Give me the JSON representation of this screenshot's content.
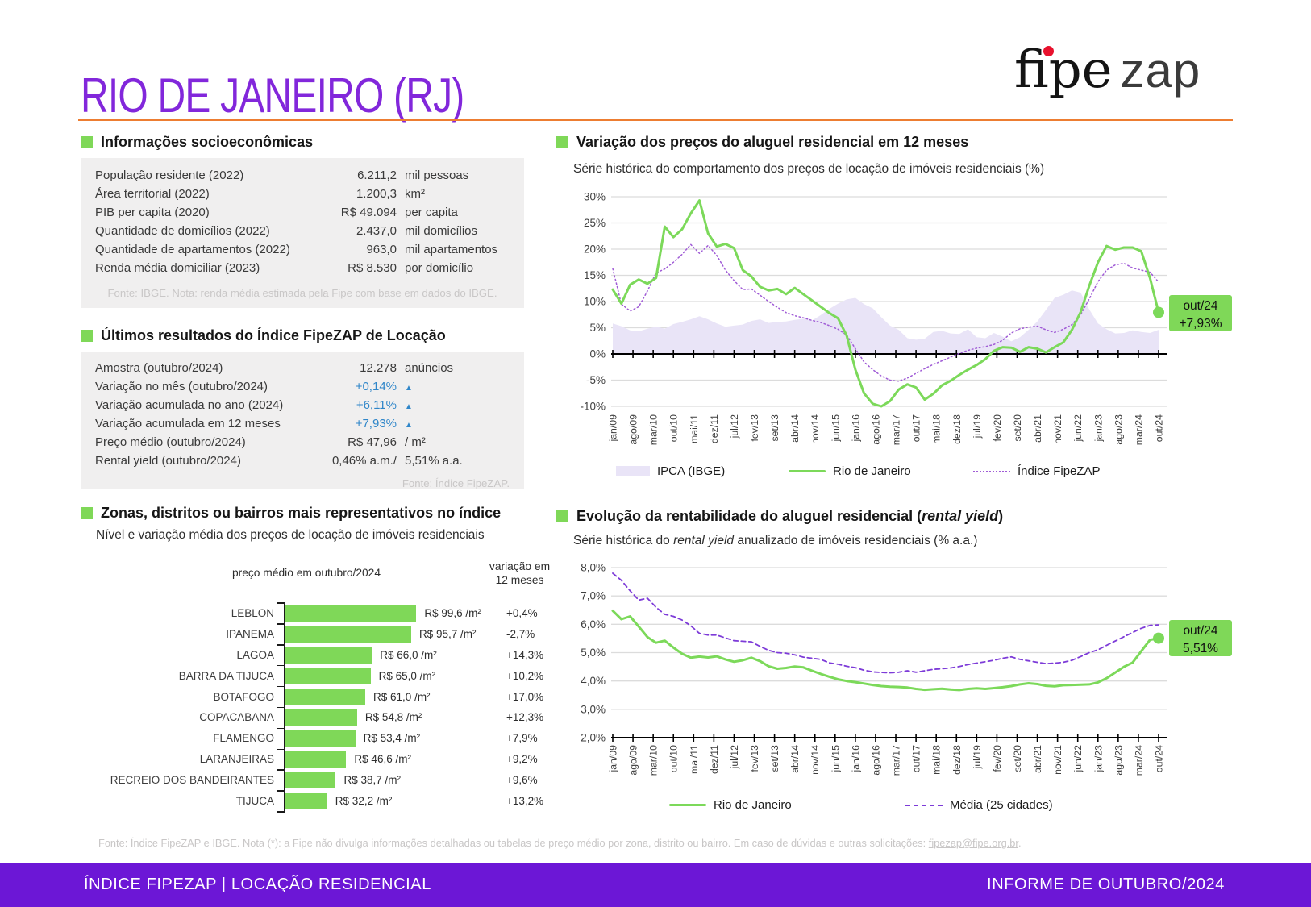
{
  "header": {
    "title": "RIO DE JANEIRO (RJ)",
    "logo": {
      "fipe": "fipe",
      "zap": "zap"
    }
  },
  "socio": {
    "title": "Informações socioeconômicas",
    "rows": [
      {
        "label": "População residente (2022)",
        "value": "6.211,2",
        "unit": "mil pessoas"
      },
      {
        "label": "Área territorial (2022)",
        "value": "1.200,3",
        "unit": "km²"
      },
      {
        "label": "PIB per capita (2020)",
        "value": "R$ 49.094",
        "unit": "per capita"
      },
      {
        "label": "Quantidade de domicílios (2022)",
        "value": "2.437,0",
        "unit": "mil domicílios"
      },
      {
        "label": "Quantidade de apartamentos (2022)",
        "value": "963,0",
        "unit": "mil apartamentos"
      },
      {
        "label": "Renda média domiciliar (2023)",
        "value": "R$ 8.530",
        "unit": "por domicílio"
      }
    ],
    "source": "Fonte: IBGE. Nota: renda média estimada pela Fipe com base em dados do IBGE."
  },
  "results": {
    "title": "Últimos resultados do Índice FipeZAP de Locação",
    "rows": [
      {
        "label": "Amostra (outubro/2024)",
        "value": "12.278",
        "unit": "anúncios",
        "blue": false
      },
      {
        "label": "Variação no mês (outubro/2024)",
        "value": "+0,14%",
        "unit": "▲",
        "blue": true
      },
      {
        "label": "Variação acumulada no ano (2024)",
        "value": "+6,11%",
        "unit": "▲",
        "blue": true
      },
      {
        "label": "Variação acumulada em 12 meses",
        "value": "+7,93%",
        "unit": "▲",
        "blue": true
      },
      {
        "label": "Preço médio (outubro/2024)",
        "value": "R$ 47,96",
        "unit": "/ m²",
        "blue": false
      },
      {
        "label": "Rental yield (outubro/2024)",
        "value": "0,46% a.m./",
        "unit": "5,51% a.a.",
        "blue": false
      }
    ],
    "source": "Fonte: Índice FipeZAP."
  },
  "bairros": {
    "title": "Zonas, distritos ou bairros mais representativos no índice",
    "subtitle": "Nível e variação média dos preços de locação de imóveis residenciais",
    "col_price": "preço médio em outubro/2024",
    "col_var_line1": "variação em",
    "col_var_line2": "12 meses"
  },
  "price_chart": {
    "title": "Variação dos preços do aluguel residencial em 12 meses",
    "subtitle": "Série histórica do comportamento dos preços de locação de imóveis residenciais (%)",
    "callout_line1": "out/24",
    "callout_line2": "+7,93%",
    "legend": [
      "IPCA (IBGE)",
      "Rio de Janeiro",
      "Índice FipeZAP"
    ]
  },
  "yield_chart": {
    "title_prefix": "Evolução da rentabilidade do aluguel residencial (",
    "title_italic": "rental yield",
    "title_suffix": ")",
    "subtitle_prefix": "Série histórica do ",
    "subtitle_italic": "rental yield",
    "subtitle_suffix": " anualizado de imóveis residenciais (% a.a.)",
    "callout_line1": "out/24",
    "callout_line2": "5,51%",
    "legend": [
      "Rio de Janeiro",
      "Média (25 cidades)"
    ]
  },
  "note": {
    "prefix": "Fonte: Índice FipeZAP e IBGE. Nota (*): a Fipe não divulga informações detalhadas ou tabelas de preço médio por zona, distrito ou bairro. Em caso de dúvidas e outras solicitações: ",
    "link": "fipezap@fipe.org.br",
    "suffix": "."
  },
  "footer": {
    "left": "ÍNDICE FIPEZAP | LOCAÇÃO RESIDENCIAL",
    "right": "INFORME DE OUTUBRO/2024"
  },
  "colors": {
    "accent_green": "#7FD858",
    "title_purple": "#8227DB",
    "footer_purple": "#6C17D6",
    "orange": "#ED7D31",
    "value_blue": "#2F86C9",
    "ipca_lavender": "#E9E4F7",
    "fipezap_dotted_purple": "#A05CD6",
    "media_dashed_purple": "#7D3BD8"
  },
  "chart_data": [
    {
      "type": "bar",
      "title": "Zonas, distritos ou bairros mais representativos no índice",
      "categories": [
        "LEBLON",
        "IPANEMA",
        "LAGOA",
        "BARRA DA TIJUCA",
        "BOTAFOGO",
        "COPACABANA",
        "FLAMENGO",
        "LARANJEIRAS",
        "RECREIO DOS BANDEIRANTES",
        "TIJUCA"
      ],
      "values": [
        99.6,
        95.7,
        66.0,
        65.0,
        61.0,
        54.8,
        53.4,
        46.6,
        38.7,
        32.2
      ],
      "value_labels": [
        "R$ 99,6 /m²",
        "R$ 95,7 /m²",
        "R$ 66,0 /m²",
        "R$ 65,0 /m²",
        "R$ 61,0 /m²",
        "R$ 54,8 /m²",
        "R$ 53,4 /m²",
        "R$ 46,6 /m²",
        "R$ 38,7 /m²",
        "R$ 32,2 /m²"
      ],
      "variations": [
        "+0,4%",
        "-2,7%",
        "+14,3%",
        "+10,2%",
        "+17,0%",
        "+12,3%",
        "+7,9%",
        "+9,2%",
        "+9,6%",
        "+13,2%"
      ],
      "xlabel": "preço médio em outubro/2024",
      "ylabel": "variação em 12 meses"
    },
    {
      "type": "line",
      "title": "Variação dos preços do aluguel residencial em 12 meses",
      "ylim": [
        -10,
        30
      ],
      "y_ticks": [
        "30%",
        "25%",
        "20%",
        "15%",
        "10%",
        "5%",
        "0%",
        "-5%",
        "-10%"
      ],
      "grid_step": 5,
      "axis_value": 0,
      "months_total": 189,
      "sample_step": 3,
      "x_tick_labels": [
        "jan/09",
        "ago/09",
        "mar/10",
        "out/10",
        "mai/11",
        "dez/11",
        "jul/12",
        "fev/13",
        "set/13",
        "abr/14",
        "nov/14",
        "jun/15",
        "jan/16",
        "ago/16",
        "mar/17",
        "out/17",
        "mai/18",
        "dez/18",
        "jul/19",
        "fev/20",
        "set/20",
        "abr/21",
        "nov/21",
        "jun/22",
        "jan/23",
        "ago/23",
        "mar/24",
        "out/24"
      ],
      "end_label": "out/24 +7,93%",
      "series": [
        {
          "name": "IPCA (IBGE)",
          "style": "area",
          "values": [
            5.8,
            5.3,
            4.5,
            4.3,
            4.8,
            5.2,
            4.8,
            5.7,
            6.1,
            6.6,
            7.2,
            6.6,
            5.8,
            5.2,
            5.4,
            5.6,
            6.3,
            6.6,
            5.9,
            6.1,
            6.2,
            6.5,
            6.7,
            6.4,
            7.4,
            8.6,
            9.6,
            10.4,
            10.7,
            9.5,
            8.7,
            7.0,
            5.4,
            4.6,
            3.0,
            2.7,
            2.9,
            4.2,
            4.4,
            3.9,
            3.8,
            4.7,
            3.2,
            3.0,
            4.0,
            3.3,
            2.4,
            3.2,
            4.6,
            6.2,
            8.4,
            10.7,
            11.3,
            12.1,
            11.7,
            8.5,
            5.8,
            4.7,
            3.9,
            4.0,
            4.5,
            4.2,
            4.0,
            4.6
          ]
        },
        {
          "name": "Índice FipeZAP",
          "style": "dotted",
          "values": [
            16.3,
            9.5,
            8.2,
            9.0,
            12.0,
            15.5,
            16.2,
            17.5,
            19.0,
            20.9,
            19.2,
            20.7,
            18.8,
            16.0,
            14.0,
            12.3,
            12.4,
            11.2,
            10.0,
            8.9,
            7.9,
            7.3,
            6.9,
            6.4,
            6.0,
            5.4,
            4.7,
            3.6,
            1.0,
            -1.5,
            -3.0,
            -4.2,
            -5.0,
            -5.2,
            -4.6,
            -3.7,
            -2.8,
            -2.0,
            -1.3,
            -0.6,
            0.1,
            0.7,
            1.1,
            1.4,
            1.8,
            2.6,
            4.0,
            4.8,
            5.1,
            5.3,
            4.6,
            4.1,
            4.7,
            5.6,
            7.5,
            10.5,
            13.8,
            16.0,
            17.0,
            17.3,
            16.4,
            16.0,
            15.6,
            13.7
          ]
        },
        {
          "name": "Rio de Janeiro",
          "style": "line",
          "values": [
            12.3,
            9.6,
            13.2,
            14.2,
            13.4,
            14.5,
            24.3,
            22.3,
            23.8,
            26.8,
            29.3,
            23.0,
            20.5,
            21.0,
            20.2,
            16.0,
            14.8,
            12.8,
            12.1,
            12.4,
            11.4,
            12.6,
            11.4,
            10.2,
            9.0,
            7.8,
            6.8,
            3.5,
            -3.0,
            -7.5,
            -9.5,
            -10.0,
            -9.0,
            -6.8,
            -5.8,
            -6.4,
            -8.7,
            -7.6,
            -6.0,
            -5.1,
            -4.0,
            -3.0,
            -2.1,
            -1.0,
            0.6,
            1.3,
            1.2,
            0.4,
            1.3,
            1.0,
            0.3,
            1.3,
            2.2,
            4.6,
            8.0,
            13.0,
            17.5,
            20.6,
            19.9,
            20.3,
            20.3,
            19.6,
            14.5,
            7.93
          ]
        }
      ]
    },
    {
      "type": "line",
      "title": "Evolução da rentabilidade do aluguel residencial (rental yield)",
      "ylim": [
        2,
        8
      ],
      "y_ticks": [
        "8,0%",
        "7,0%",
        "6,0%",
        "5,0%",
        "4,0%",
        "3,0%",
        "2,0%"
      ],
      "grid_step": 1,
      "axis_value": 2,
      "months_total": 189,
      "sample_step": 3,
      "x_tick_labels": [
        "jan/09",
        "ago/09",
        "mar/10",
        "out/10",
        "mai/11",
        "dez/11",
        "jul/12",
        "fev/13",
        "set/13",
        "abr/14",
        "nov/14",
        "jun/15",
        "jan/16",
        "ago/16",
        "mar/17",
        "out/17",
        "mai/18",
        "dez/18",
        "jul/19",
        "fev/20",
        "set/20",
        "abr/21",
        "nov/21",
        "jun/22",
        "jan/23",
        "ago/23",
        "mar/24",
        "out/24"
      ],
      "end_label": "out/24 5,51%",
      "series": [
        {
          "name": "Média (25 cidades)",
          "style": "dashed",
          "values": [
            7.8,
            7.55,
            7.18,
            6.85,
            6.92,
            6.6,
            6.35,
            6.28,
            6.15,
            5.95,
            5.68,
            5.62,
            5.62,
            5.52,
            5.42,
            5.4,
            5.38,
            5.22,
            5.08,
            5.0,
            4.98,
            4.92,
            4.84,
            4.8,
            4.76,
            4.64,
            4.59,
            4.52,
            4.47,
            4.38,
            4.32,
            4.3,
            4.29,
            4.31,
            4.36,
            4.31,
            4.36,
            4.41,
            4.43,
            4.46,
            4.51,
            4.58,
            4.63,
            4.68,
            4.73,
            4.8,
            4.85,
            4.76,
            4.71,
            4.66,
            4.61,
            4.63,
            4.66,
            4.73,
            4.86,
            5.0,
            5.1,
            5.26,
            5.41,
            5.56,
            5.71,
            5.86,
            5.96,
            5.98
          ]
        },
        {
          "name": "Rio de Janeiro",
          "style": "line",
          "values": [
            6.48,
            6.18,
            6.28,
            5.92,
            5.55,
            5.35,
            5.42,
            5.18,
            4.96,
            4.82,
            4.86,
            4.83,
            4.87,
            4.76,
            4.68,
            4.73,
            4.82,
            4.7,
            4.52,
            4.43,
            4.46,
            4.51,
            4.48,
            4.36,
            4.25,
            4.15,
            4.06,
            4.0,
            3.96,
            3.91,
            3.86,
            3.82,
            3.8,
            3.79,
            3.77,
            3.72,
            3.69,
            3.71,
            3.73,
            3.7,
            3.68,
            3.72,
            3.74,
            3.72,
            3.75,
            3.78,
            3.82,
            3.88,
            3.92,
            3.89,
            3.83,
            3.81,
            3.85,
            3.86,
            3.87,
            3.88,
            3.95,
            4.1,
            4.3,
            4.5,
            4.65,
            5.05,
            5.45,
            5.51
          ]
        }
      ]
    }
  ]
}
